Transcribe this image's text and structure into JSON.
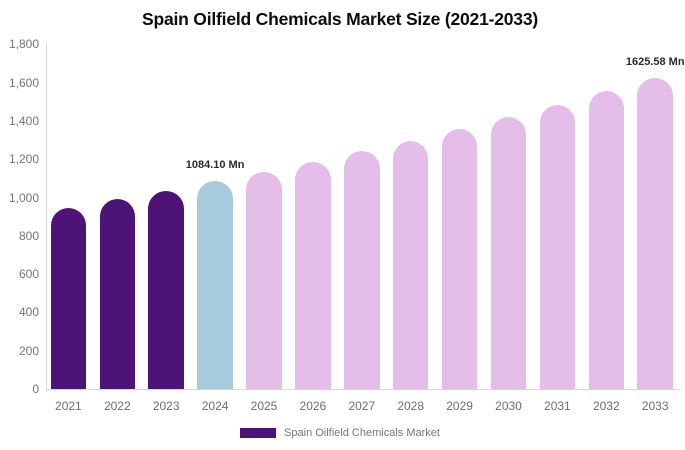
{
  "chart_data": {
    "type": "bar",
    "title": "Spain Oilfield Chemicals Market Size (2021-2033)",
    "unit": "Mn",
    "categories": [
      "2021",
      "2022",
      "2023",
      "2024",
      "2025",
      "2026",
      "2027",
      "2028",
      "2029",
      "2030",
      "2031",
      "2032",
      "2033"
    ],
    "values": [
      947,
      991,
      1036,
      1084.1,
      1134,
      1186,
      1241,
      1298,
      1358,
      1420,
      1486,
      1554,
      1625.58
    ],
    "point_labels": [
      "",
      "",
      "",
      "1084.10 Mn",
      "",
      "",
      "",
      "",
      "",
      "",
      "",
      "",
      "1625.58 Mn"
    ],
    "segments": [
      "historical",
      "historical",
      "historical",
      "current",
      "forecast",
      "forecast",
      "forecast",
      "forecast",
      "forecast",
      "forecast",
      "forecast",
      "forecast",
      "forecast"
    ],
    "colors": {
      "historical": "#4E1377",
      "current": "#A6CBDE",
      "forecast": "#E4BDE8"
    },
    "ylim": [
      0,
      1800
    ],
    "grid": false,
    "yticks": [
      {
        "value": 0,
        "label": "0"
      },
      {
        "value": 200,
        "label": "200"
      },
      {
        "value": 400,
        "label": "400"
      },
      {
        "value": 600,
        "label": "600"
      },
      {
        "value": 800,
        "label": "800"
      },
      {
        "value": 1000,
        "label": "1,000"
      },
      {
        "value": 1200,
        "label": "1,200"
      },
      {
        "value": 1400,
        "label": "1,400"
      },
      {
        "value": 1600,
        "label": "1,600"
      },
      {
        "value": 1800,
        "label": "1,800"
      }
    ],
    "legend": {
      "position": "bottom",
      "swatch_color": "#4E1377",
      "label": "Spain Oilfield Chemicals Market"
    }
  }
}
